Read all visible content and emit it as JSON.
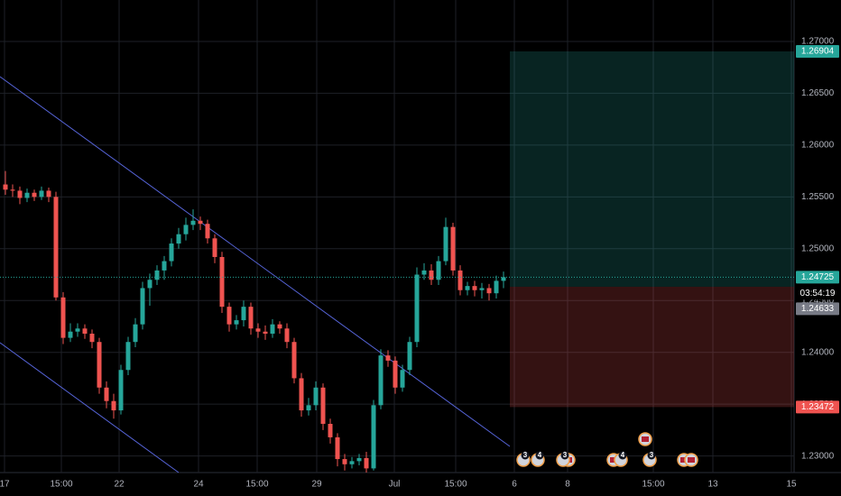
{
  "chart_data": {
    "type": "candlestick",
    "open": [
      1.2562,
      1.2557,
      1.2556,
      1.2549,
      1.2554,
      1.255,
      1.2556,
      1.255,
      1.2453,
      1.2414,
      1.242,
      1.2423,
      1.2418,
      1.241,
      1.2366,
      1.2353,
      1.2344,
      1.2383,
      1.241,
      1.2427,
      1.2462,
      1.247,
      1.2479,
      1.2488,
      1.2505,
      1.2514,
      1.2523,
      1.2527,
      1.2524,
      1.251,
      1.2492,
      1.2444,
      1.2427,
      1.2431,
      1.2444,
      1.2423,
      1.242,
      1.2418,
      1.2427,
      1.2423,
      1.241,
      1.2375,
      1.2344,
      1.2349,
      1.2366,
      1.2331,
      1.2318,
      1.2297,
      1.2292,
      1.2295,
      1.2298,
      1.2288,
      1.2349,
      1.2397,
      1.2392,
      1.2366,
      1.2383,
      1.241,
      1.2475,
      1.2479,
      1.247,
      1.2488,
      1.2521,
      1.2479,
      1.246,
      1.2464,
      1.246,
      1.2462,
      1.2457,
      1.2469
    ],
    "high": [
      1.2575,
      1.2562,
      1.256,
      1.2558,
      1.2557,
      1.256,
      1.2559,
      1.2555,
      1.2458,
      1.2428,
      1.2428,
      1.2427,
      1.2422,
      1.2414,
      1.2372,
      1.236,
      1.2388,
      1.2415,
      1.2433,
      1.2468,
      1.2476,
      1.2484,
      1.2493,
      1.251,
      1.252,
      1.253,
      1.2538,
      1.2531,
      1.2528,
      1.2514,
      1.2497,
      1.2448,
      1.2436,
      1.245,
      1.2448,
      1.2428,
      1.2426,
      1.2432,
      1.243,
      1.2428,
      1.2414,
      1.238,
      1.2356,
      1.2372,
      1.237,
      1.2336,
      1.2322,
      1.2302,
      1.2299,
      1.2302,
      1.2304,
      1.2354,
      1.2403,
      1.2402,
      1.2396,
      1.2388,
      1.2415,
      1.2482,
      1.2486,
      1.2485,
      1.2493,
      1.253,
      1.2525,
      1.2484,
      1.2468,
      1.2469,
      1.2467,
      1.2466,
      1.2474,
      1.2478
    ],
    "low": [
      1.2552,
      1.255,
      1.2543,
      1.2545,
      1.2546,
      1.2547,
      1.2545,
      1.245,
      1.2408,
      1.241,
      1.2415,
      1.2413,
      1.2404,
      1.236,
      1.2346,
      1.2336,
      1.234,
      1.2378,
      1.2405,
      1.2422,
      1.2445,
      1.2465,
      1.247,
      1.2483,
      1.25,
      1.2508,
      1.2518,
      1.2518,
      1.2505,
      1.2486,
      1.2438,
      1.242,
      1.2422,
      1.2425,
      1.2417,
      1.2414,
      1.2412,
      1.2414,
      1.2418,
      1.2404,
      1.237,
      1.2338,
      1.2339,
      1.2344,
      1.2325,
      1.2312,
      1.229,
      1.2286,
      1.2288,
      1.2291,
      1.2284,
      1.2286,
      1.2345,
      1.2386,
      1.236,
      1.2362,
      1.2378,
      1.2405,
      1.247,
      1.2465,
      1.2465,
      1.2484,
      1.2474,
      1.2455,
      1.2455,
      1.2454,
      1.2452,
      1.245,
      1.2452,
      1.2462
    ],
    "close": [
      1.2557,
      1.2556,
      1.2549,
      1.2554,
      1.255,
      1.2556,
      1.255,
      1.2453,
      1.2414,
      1.242,
      1.2423,
      1.2418,
      1.241,
      1.2366,
      1.2353,
      1.2344,
      1.2383,
      1.241,
      1.2427,
      1.2462,
      1.247,
      1.2479,
      1.2488,
      1.2505,
      1.2514,
      1.2523,
      1.2527,
      1.2524,
      1.251,
      1.2492,
      1.2444,
      1.2427,
      1.2431,
      1.2444,
      1.2423,
      1.242,
      1.2418,
      1.2427,
      1.2423,
      1.241,
      1.2375,
      1.2344,
      1.2349,
      1.2366,
      1.2331,
      1.2318,
      1.2297,
      1.2292,
      1.2295,
      1.2298,
      1.2288,
      1.2349,
      1.2397,
      1.2392,
      1.2366,
      1.2383,
      1.241,
      1.2475,
      1.2479,
      1.247,
      1.2488,
      1.2521,
      1.2479,
      1.246,
      1.2464,
      1.246,
      1.2462,
      1.2457,
      1.2469,
      1.24725
    ],
    "up_color": "#26a69a",
    "down_color": "#ef5350",
    "ylim": [
      1.2284,
      1.274
    ],
    "yticks": [
      {
        "value": 1.23,
        "label": "1.23000"
      },
      {
        "value": 1.235,
        "label": "1.23500"
      },
      {
        "value": 1.24,
        "label": "1.24000"
      },
      {
        "value": 1.245,
        "label": "1.24500"
      },
      {
        "value": 1.25,
        "label": "1.25000"
      },
      {
        "value": 1.255,
        "label": "1.25500"
      },
      {
        "value": 1.26,
        "label": "1.26000"
      },
      {
        "value": 1.265,
        "label": "1.26500"
      },
      {
        "value": 1.27,
        "label": "1.27000"
      }
    ],
    "x_labels": [
      "17",
      "15:00",
      "22",
      "24",
      "15:00",
      "29",
      "Jul",
      "15:00",
      "6",
      "8",
      "15:00",
      "13",
      "15"
    ],
    "grid": true,
    "position": {
      "target": 1.26904,
      "target_label": "1.26904",
      "entry": 1.24633,
      "entry_label": "1.24633",
      "stop": 1.23472,
      "stop_label": "1.23472"
    },
    "last_price": {
      "value": 1.24725,
      "label": "1.24725",
      "countdown": "03:54:19"
    },
    "events": [
      "3",
      "4",
      "3",
      "4",
      "3"
    ]
  }
}
